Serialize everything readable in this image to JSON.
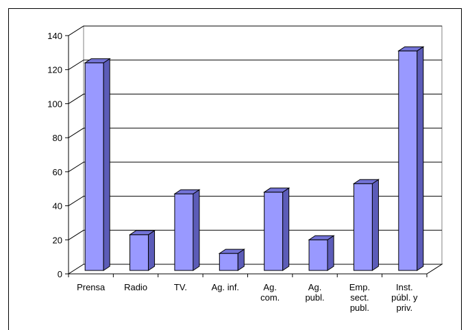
{
  "chart_data": {
    "type": "bar",
    "style": "3d-column",
    "categories": [
      [
        "Prensa"
      ],
      [
        "Radio"
      ],
      [
        "TV."
      ],
      [
        "Ag. inf."
      ],
      [
        "Ag.",
        "com."
      ],
      [
        "Ag.",
        "publ."
      ],
      [
        "Emp.",
        "sect.",
        "publ."
      ],
      [
        "Inst.",
        "públ. y",
        "priv."
      ]
    ],
    "values": [
      122,
      21,
      45,
      10,
      46,
      18,
      51,
      129
    ],
    "ylim": [
      0,
      140
    ],
    "yticks": [
      0,
      20,
      40,
      60,
      80,
      100,
      120,
      140
    ],
    "grid": true,
    "legend": "none",
    "colors": {
      "bar_front": "#9999ff",
      "bar_side": "#5c5cb8",
      "bar_top": "#7373d6",
      "grid": "#000000",
      "wall": "#ffffff"
    }
  }
}
